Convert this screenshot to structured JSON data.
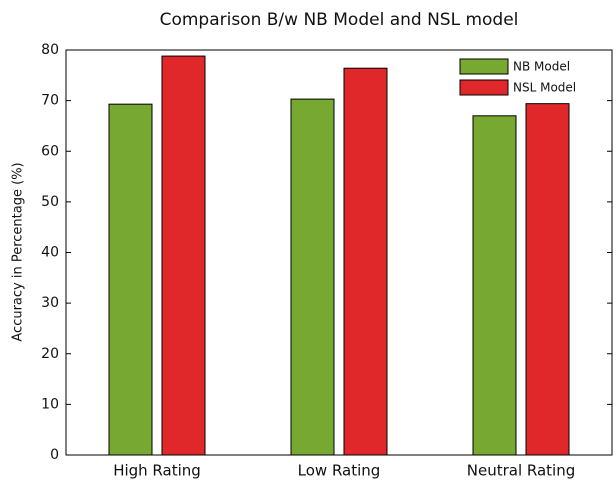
{
  "chart_data": {
    "type": "bar",
    "title": "Comparison B/w NB Model and NSL model",
    "y_label": "Accuracy in Percentage (%)",
    "categories": [
      "High Rating",
      "Low Rating",
      "Neutral Rating"
    ],
    "series": [
      {
        "name": "NB Model",
        "color": "#77a832",
        "values": [
          69.3,
          70.3,
          67.0
        ]
      },
      {
        "name": "NSL Model",
        "color": "#e0282a",
        "values": [
          78.8,
          76.4,
          69.4
        ]
      }
    ],
    "ylim": [
      0,
      80
    ],
    "yticks": [
      0,
      10,
      20,
      30,
      40,
      50,
      60,
      70,
      80
    ],
    "legend": "upper right"
  }
}
